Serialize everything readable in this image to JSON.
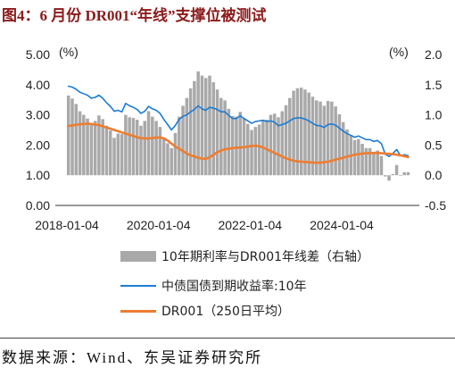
{
  "title": "图4：6 月份 DR001“年线”支撑位被测试",
  "source": "数据来源：Wind、东吴证券研究所",
  "colors": {
    "title": "#8C1A1A"
  },
  "chart_data": {
    "type": "line",
    "title": "",
    "legend": "bottom",
    "grid": false,
    "xticks": [
      "2018-01-04",
      "2020-01-04",
      "2022-01-04",
      "2024-01-04"
    ],
    "y_left": {
      "unit": "(%)",
      "ylim": [
        0,
        5
      ],
      "ticks": [
        "0.00",
        "1.00",
        "2.00",
        "3.00",
        "4.00",
        "5.00"
      ]
    },
    "y_right": {
      "unit": "(%)",
      "ylim": [
        -0.5,
        2.0
      ],
      "ticks": [
        "-0.5",
        "0.0",
        "0.5",
        "1.0",
        "1.5",
        "2.0"
      ]
    },
    "x": [
      "2018-01",
      "2018-02",
      "2018-03",
      "2018-04",
      "2018-05",
      "2018-06",
      "2018-07",
      "2018-08",
      "2018-09",
      "2018-10",
      "2018-11",
      "2018-12",
      "2019-01",
      "2019-02",
      "2019-03",
      "2019-04",
      "2019-05",
      "2019-06",
      "2019-07",
      "2019-08",
      "2019-09",
      "2019-10",
      "2019-11",
      "2019-12",
      "2020-01",
      "2020-02",
      "2020-03",
      "2020-04",
      "2020-05",
      "2020-06",
      "2020-07",
      "2020-08",
      "2020-09",
      "2020-10",
      "2020-11",
      "2020-12",
      "2021-01",
      "2021-02",
      "2021-03",
      "2021-04",
      "2021-05",
      "2021-06",
      "2021-07",
      "2021-08",
      "2021-09",
      "2021-10",
      "2021-11",
      "2021-12",
      "2022-01",
      "2022-02",
      "2022-03",
      "2022-04",
      "2022-05",
      "2022-06",
      "2022-07",
      "2022-08",
      "2022-09",
      "2022-10",
      "2022-11",
      "2022-12",
      "2023-01",
      "2023-02",
      "2023-03",
      "2023-04",
      "2023-05",
      "2023-06",
      "2023-07",
      "2023-08",
      "2023-09",
      "2023-10",
      "2023-11",
      "2023-12",
      "2024-01",
      "2024-02",
      "2024-03",
      "2024-04",
      "2024-05",
      "2024-06",
      "2024-07",
      "2024-08",
      "2024-09",
      "2024-10",
      "2024-11",
      "2024-12",
      "2025-01",
      "2025-02",
      "2025-03",
      "2025-04",
      "2025-05",
      "2025-06"
    ],
    "series": [
      {
        "name": "10年期利率与DR001年线差（右轴）",
        "type": "bar",
        "axis": "right",
        "color": "#A9A9A9",
        "values": [
          1.32,
          1.27,
          1.18,
          1.06,
          1.0,
          0.94,
          0.85,
          0.9,
          0.99,
          0.93,
          0.82,
          0.74,
          0.62,
          0.69,
          0.68,
          1.0,
          0.96,
          0.95,
          0.92,
          0.82,
          0.9,
          1.06,
          0.97,
          0.9,
          0.8,
          0.63,
          0.53,
          0.45,
          0.7,
          0.97,
          1.15,
          1.28,
          1.44,
          1.56,
          1.72,
          1.65,
          1.61,
          1.65,
          1.54,
          1.42,
          1.28,
          1.24,
          1.1,
          0.98,
          0.97,
          1.05,
          0.95,
          0.85,
          0.75,
          0.8,
          0.84,
          0.9,
          0.92,
          1.0,
          1.02,
          0.96,
          1.06,
          1.16,
          1.28,
          1.4,
          1.44,
          1.45,
          1.42,
          1.37,
          1.3,
          1.24,
          1.22,
          1.15,
          1.23,
          1.22,
          1.14,
          1.01,
          0.88,
          0.76,
          0.67,
          0.58,
          0.6,
          0.52,
          0.45,
          0.45,
          0.38,
          0.41,
          0.32,
          -0.02,
          -0.09,
          0.02,
          0.17,
          -0.01,
          0.05,
          0.05
        ]
      },
      {
        "name": "中债国债到期收益率:10年",
        "type": "line",
        "axis": "left",
        "color": "#1C7CD5",
        "values": [
          3.95,
          3.92,
          3.85,
          3.75,
          3.7,
          3.65,
          3.55,
          3.58,
          3.65,
          3.55,
          3.4,
          3.28,
          3.12,
          3.15,
          3.1,
          3.38,
          3.3,
          3.25,
          3.18,
          3.05,
          3.12,
          3.28,
          3.2,
          3.15,
          3.05,
          2.85,
          2.68,
          2.5,
          2.65,
          2.85,
          2.95,
          3.0,
          3.1,
          3.18,
          3.3,
          3.2,
          3.15,
          3.25,
          3.22,
          3.18,
          3.1,
          3.1,
          2.98,
          2.88,
          2.88,
          2.97,
          2.88,
          2.8,
          2.72,
          2.78,
          2.8,
          2.82,
          2.78,
          2.8,
          2.76,
          2.64,
          2.68,
          2.72,
          2.8,
          2.88,
          2.9,
          2.9,
          2.86,
          2.8,
          2.72,
          2.65,
          2.64,
          2.58,
          2.68,
          2.7,
          2.66,
          2.56,
          2.46,
          2.38,
          2.32,
          2.26,
          2.3,
          2.24,
          2.18,
          2.18,
          2.12,
          2.15,
          2.05,
          1.7,
          1.62,
          1.72,
          1.85,
          1.65,
          1.68,
          1.65
        ]
      },
      {
        "name": "DR001（250日平均）",
        "type": "line",
        "axis": "left",
        "color": "#ED7D31",
        "values": [
          2.63,
          2.65,
          2.67,
          2.69,
          2.7,
          2.71,
          2.7,
          2.68,
          2.66,
          2.62,
          2.58,
          2.54,
          2.5,
          2.46,
          2.42,
          2.38,
          2.34,
          2.3,
          2.26,
          2.23,
          2.22,
          2.22,
          2.23,
          2.25,
          2.25,
          2.22,
          2.15,
          2.05,
          1.95,
          1.88,
          1.8,
          1.72,
          1.66,
          1.62,
          1.58,
          1.55,
          1.54,
          1.6,
          1.68,
          1.76,
          1.82,
          1.86,
          1.88,
          1.9,
          1.91,
          1.92,
          1.93,
          1.95,
          1.97,
          1.98,
          1.96,
          1.92,
          1.86,
          1.8,
          1.74,
          1.68,
          1.62,
          1.56,
          1.52,
          1.48,
          1.46,
          1.45,
          1.44,
          1.43,
          1.42,
          1.41,
          1.42,
          1.43,
          1.45,
          1.48,
          1.52,
          1.55,
          1.58,
          1.62,
          1.65,
          1.68,
          1.7,
          1.72,
          1.73,
          1.73,
          1.74,
          1.74,
          1.73,
          1.72,
          1.71,
          1.7,
          1.68,
          1.66,
          1.63,
          1.6
        ]
      }
    ]
  }
}
